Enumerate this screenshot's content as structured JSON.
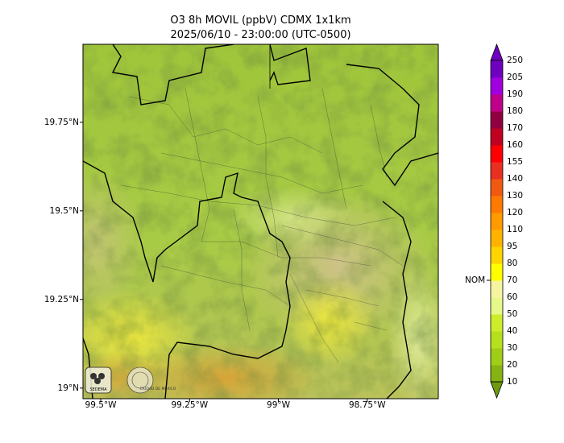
{
  "title": {
    "line1": "O3 8h MOVIL (ppbV) CDMX 1x1km",
    "line2": "2025/06/10 - 23:00:00 (UTC-0500)"
  },
  "axes": {
    "lat_labels": [
      "19.75°N",
      "19.5°N",
      "19.25°N",
      "19°N"
    ],
    "lat_values": [
      19.75,
      19.5,
      19.25,
      19.0
    ],
    "lon_labels": [
      "99.5°W",
      "99.25°W",
      "99°W",
      "98.75°W"
    ],
    "lon_values": [
      -99.5,
      -99.25,
      -99.0,
      -98.75
    ],
    "lat_range": [
      18.97,
      19.97
    ],
    "lon_range": [
      -99.55,
      -98.55
    ]
  },
  "colorbar": {
    "levels": [
      10,
      20,
      30,
      40,
      50,
      60,
      70,
      80,
      95,
      110,
      120,
      130,
      140,
      155,
      160,
      170,
      180,
      190,
      205,
      250
    ],
    "labels": [
      "10",
      "20",
      "30",
      "40",
      "50",
      "60",
      "70",
      "80",
      "95",
      "110",
      "120",
      "130",
      "140",
      "155",
      "160",
      "170",
      "180",
      "190",
      "205",
      "250"
    ],
    "colors": [
      "#6f9a10",
      "#86b314",
      "#a0cd18",
      "#b6e01e",
      "#ccee2a",
      "#e6f88a",
      "#f5f5a0",
      "#ffff00",
      "#ffd400",
      "#ffb300",
      "#ff9a00",
      "#ff7a00",
      "#f05a10",
      "#e83020",
      "#ff0000",
      "#c00020",
      "#900040",
      "#c0008a",
      "#a000e0",
      "#7000c0"
    ],
    "nom_label": "NOM",
    "nom_value": 70
  },
  "logos": {
    "logo1_text": "SEDEMA",
    "logo2_text": "CIUDAD DE MÉXICO"
  }
}
